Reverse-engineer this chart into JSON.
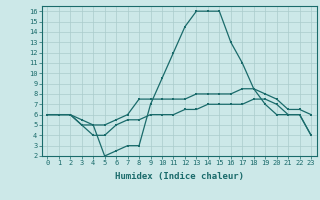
{
  "xlabel": "Humidex (Indice chaleur)",
  "bg_color": "#cce8e8",
  "grid_color": "#aacccc",
  "line_color": "#1a6b6b",
  "xlim": [
    -0.5,
    23.5
  ],
  "ylim": [
    2,
    16.5
  ],
  "x": [
    0,
    1,
    2,
    3,
    4,
    5,
    6,
    7,
    8,
    9,
    10,
    11,
    12,
    13,
    14,
    15,
    16,
    17,
    18,
    19,
    20,
    21,
    22,
    23
  ],
  "line1": [
    6,
    6,
    6,
    5,
    5,
    2,
    2.5,
    3,
    3,
    7,
    9.5,
    12,
    14.5,
    16,
    16,
    16,
    13,
    11,
    8.5,
    7,
    6,
    6,
    6,
    4
  ],
  "line2": [
    6,
    6,
    6,
    5.5,
    5,
    5,
    5.5,
    6,
    7.5,
    7.5,
    7.5,
    7.5,
    7.5,
    8,
    8,
    8,
    8,
    8.5,
    8.5,
    8,
    7.5,
    6.5,
    6.5,
    6
  ],
  "line3": [
    6,
    6,
    6,
    5,
    4,
    4,
    5,
    5.5,
    5.5,
    6,
    6,
    6,
    6.5,
    6.5,
    7,
    7,
    7,
    7,
    7.5,
    7.5,
    7,
    6,
    6,
    4
  ]
}
